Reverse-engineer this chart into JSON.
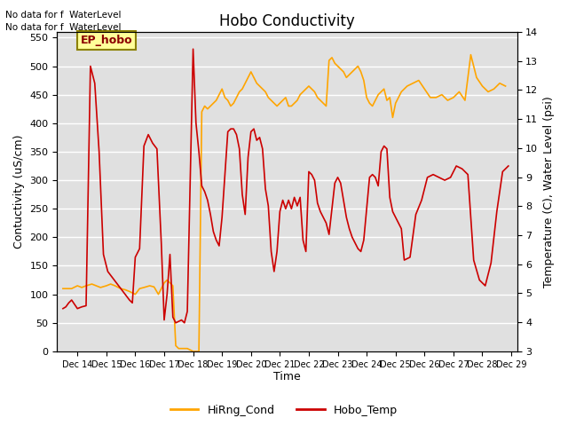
{
  "title": "Hobo Conductivity",
  "xlabel": "Time",
  "ylabel_left": "Contuctivity (uS/cm)",
  "ylabel_right": "Temperature (C), Water Level (psi)",
  "xlim_days": [
    13.3,
    29.2
  ],
  "ylim_left": [
    0,
    560
  ],
  "ylim_right": [
    3.0,
    14.0
  ],
  "annotation_line1": "No data for f  WaterLevel",
  "annotation_line2": "No data for f  WaterLevel",
  "legend_box_label": "EP_hobo",
  "background_color": "#ffffff",
  "plot_bg_color": "#e0e0e0",
  "grid_color": "#ffffff",
  "hobo_cond_color": "#FFA500",
  "hobo_temp_color": "#CC0000",
  "hobo_cond_label": "HiRng_Cond",
  "hobo_temp_label": "Hobo_Temp",
  "xtick_labels": [
    "Dec 14",
    "Dec 15",
    "Dec 16",
    "Dec 17",
    "Dec 18",
    "Dec 19",
    "Dec 20",
    "Dec 21",
    "Dec 22",
    "Dec 23",
    "Dec 24",
    "Dec 25",
    "Dec 26",
    "Dec 27",
    "Dec 28",
    "Dec 29"
  ],
  "xtick_positions": [
    14,
    15,
    16,
    17,
    18,
    19,
    20,
    21,
    22,
    23,
    24,
    25,
    26,
    27,
    28,
    29
  ],
  "yticks_left": [
    0,
    50,
    100,
    150,
    200,
    250,
    300,
    350,
    400,
    450,
    500,
    550
  ],
  "yticks_right": [
    3.0,
    4.0,
    5.0,
    6.0,
    7.0,
    8.0,
    9.0,
    10.0,
    11.0,
    12.0,
    13.0,
    14.0
  ],
  "hobo_cond_x": [
    13.5,
    13.65,
    13.8,
    14.0,
    14.15,
    14.3,
    14.5,
    14.65,
    14.8,
    15.0,
    15.15,
    15.3,
    15.5,
    15.65,
    15.8,
    16.0,
    16.15,
    16.3,
    16.5,
    16.65,
    16.8,
    17.0,
    17.1,
    17.2,
    17.3,
    17.4,
    17.5,
    17.6,
    17.7,
    17.8,
    18.0,
    18.1,
    18.2,
    18.3,
    18.4,
    18.5,
    18.6,
    18.7,
    18.8,
    18.9,
    19.0,
    19.1,
    19.2,
    19.3,
    19.4,
    19.5,
    19.6,
    19.7,
    19.8,
    19.9,
    20.0,
    20.1,
    20.2,
    20.3,
    20.4,
    20.5,
    20.6,
    20.7,
    20.8,
    20.9,
    21.0,
    21.1,
    21.2,
    21.3,
    21.4,
    21.5,
    21.6,
    21.7,
    21.8,
    21.9,
    22.0,
    22.1,
    22.2,
    22.3,
    22.4,
    22.5,
    22.6,
    22.7,
    22.8,
    22.9,
    23.0,
    23.1,
    23.2,
    23.3,
    23.4,
    23.5,
    23.6,
    23.7,
    23.8,
    23.9,
    24.0,
    24.1,
    24.2,
    24.3,
    24.4,
    24.5,
    24.6,
    24.7,
    24.8,
    24.9,
    25.0,
    25.1,
    25.2,
    25.3,
    25.4,
    25.6,
    25.8,
    26.0,
    26.2,
    26.4,
    26.6,
    26.8,
    27.0,
    27.2,
    27.4,
    27.6,
    27.8,
    28.0,
    28.2,
    28.4,
    28.6,
    28.8
  ],
  "hobo_cond_y": [
    110,
    110,
    110,
    115,
    112,
    115,
    118,
    115,
    112,
    115,
    118,
    115,
    110,
    108,
    105,
    100,
    110,
    112,
    115,
    113,
    100,
    120,
    125,
    120,
    115,
    10,
    5,
    5,
    5,
    5,
    0,
    0,
    0,
    420,
    430,
    425,
    430,
    435,
    440,
    450,
    460,
    445,
    440,
    430,
    435,
    445,
    455,
    460,
    470,
    480,
    490,
    480,
    470,
    465,
    460,
    455,
    445,
    440,
    435,
    430,
    435,
    440,
    445,
    430,
    430,
    435,
    440,
    450,
    455,
    460,
    465,
    460,
    455,
    445,
    440,
    435,
    430,
    510,
    515,
    505,
    500,
    495,
    490,
    480,
    485,
    490,
    495,
    500,
    490,
    475,
    445,
    435,
    430,
    440,
    450,
    455,
    460,
    440,
    445,
    410,
    435,
    445,
    455,
    460,
    465,
    470,
    475,
    460,
    445,
    445,
    450,
    440,
    445,
    455,
    440,
    520,
    480,
    465,
    455,
    460,
    470,
    465
  ],
  "hobo_temp_x": [
    13.5,
    13.6,
    13.7,
    13.8,
    14.0,
    14.15,
    14.3,
    14.45,
    14.6,
    14.75,
    14.9,
    15.05,
    15.2,
    15.35,
    15.5,
    15.65,
    15.8,
    15.9,
    16.0,
    16.15,
    16.3,
    16.45,
    16.6,
    16.75,
    16.9,
    17.0,
    17.1,
    17.2,
    17.3,
    17.4,
    17.6,
    17.7,
    17.8,
    18.0,
    18.1,
    18.2,
    18.3,
    18.4,
    18.5,
    18.6,
    18.7,
    18.8,
    18.9,
    19.0,
    19.1,
    19.2,
    19.3,
    19.4,
    19.5,
    19.6,
    19.7,
    19.8,
    19.9,
    20.0,
    20.1,
    20.2,
    20.3,
    20.4,
    20.5,
    20.6,
    20.7,
    20.8,
    20.9,
    21.0,
    21.1,
    21.2,
    21.3,
    21.4,
    21.5,
    21.6,
    21.7,
    21.8,
    21.9,
    22.0,
    22.1,
    22.2,
    22.3,
    22.4,
    22.5,
    22.6,
    22.7,
    22.8,
    22.9,
    23.0,
    23.1,
    23.2,
    23.3,
    23.4,
    23.5,
    23.6,
    23.7,
    23.8,
    23.9,
    24.0,
    24.1,
    24.2,
    24.3,
    24.4,
    24.5,
    24.6,
    24.7,
    24.8,
    24.9,
    25.0,
    25.1,
    25.2,
    25.3,
    25.5,
    25.7,
    25.9,
    26.1,
    26.3,
    26.5,
    26.7,
    26.9,
    27.1,
    27.3,
    27.5,
    27.7,
    27.9,
    28.1,
    28.3,
    28.5,
    28.7,
    28.9
  ],
  "hobo_temp_y": [
    75,
    78,
    85,
    90,
    75,
    78,
    80,
    500,
    470,
    350,
    170,
    140,
    130,
    120,
    110,
    100,
    90,
    85,
    165,
    180,
    360,
    380,
    365,
    355,
    190,
    55,
    100,
    170,
    60,
    50,
    55,
    50,
    70,
    530,
    400,
    350,
    290,
    280,
    265,
    240,
    210,
    195,
    185,
    235,
    310,
    385,
    390,
    390,
    380,
    355,
    275,
    240,
    340,
    385,
    390,
    370,
    375,
    355,
    285,
    255,
    175,
    140,
    175,
    245,
    265,
    250,
    265,
    250,
    270,
    255,
    270,
    195,
    175,
    315,
    310,
    300,
    260,
    245,
    235,
    225,
    205,
    250,
    295,
    305,
    295,
    265,
    235,
    215,
    200,
    190,
    180,
    175,
    195,
    250,
    305,
    310,
    305,
    290,
    350,
    360,
    355,
    270,
    245,
    235,
    225,
    215,
    160,
    165,
    240,
    265,
    305,
    310,
    305,
    300,
    305,
    325,
    320,
    310,
    160,
    125,
    115,
    155,
    245,
    315,
    325
  ]
}
